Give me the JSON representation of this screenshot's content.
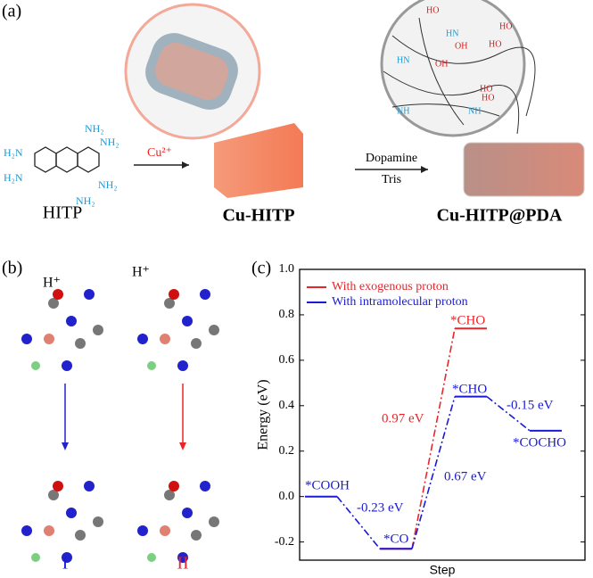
{
  "panel_a": {
    "label": "(a)",
    "hitp_groups": [
      "NH₂",
      "NH₂",
      "H₂N",
      "H₂N",
      "NH₂",
      "NH₂"
    ],
    "reagent": "Cu²⁺",
    "hitp": "HITP",
    "cu_hitp": "Cu-HITP",
    "step_top": "Dopamine",
    "step_bottom": "Tris",
    "product": "Cu-HITP@PDA",
    "pda_groups": [
      "HO",
      "HN",
      "OH",
      "HN",
      "OH",
      "HO",
      "NH",
      "HO",
      "NH",
      "HO",
      "HO"
    ]
  },
  "panel_b": {
    "label": "(b)",
    "protons": [
      "H⁺",
      "H⁺"
    ],
    "path_1": "I",
    "path_2": "II"
  },
  "chart_data": {
    "type": "energy-profile",
    "panel_label": "(c)",
    "x_label": "Step",
    "y_label": "Energy (eV)",
    "categories": [
      null,
      null,
      null,
      null
    ],
    "series": [
      {
        "name": "With exogenous proton",
        "color": "#e8262a",
        "values": [
          null,
          -0.23,
          0.74,
          null
        ]
      },
      {
        "name": "With intramolecular proton",
        "color": "#1a1ad6",
        "values": [
          0,
          -0.23,
          0.44,
          0.29
        ]
      }
    ],
    "annotations": [
      {
        "text": "*COOH",
        "color": "#1a1ad6"
      },
      {
        "text": "-0.23 eV",
        "color": "#1a1ad6"
      },
      {
        "text": "*CO",
        "color": "#1a1ad6"
      },
      {
        "text": "0.97 eV",
        "color": "#e8262a"
      },
      {
        "text": "*CHO",
        "color": "#e8262a"
      },
      {
        "text": "*CHO",
        "color": "#1a1ad6"
      },
      {
        "text": "0.67 eV",
        "color": "#1a1ad6"
      },
      {
        "text": "-0.15 eV",
        "color": "#1a1ad6"
      },
      {
        "text": "*COCHO",
        "color": "#1a1ad6"
      }
    ],
    "ylim": [
      -0.28,
      1.0
    ],
    "yticks": [
      -0.2,
      {
        "value": 0,
        "label": "0.0"
      },
      0.2,
      0.4,
      0.6,
      0.8,
      {
        "value": 1,
        "label": "1.0"
      }
    ],
    "legend": "upper left"
  }
}
